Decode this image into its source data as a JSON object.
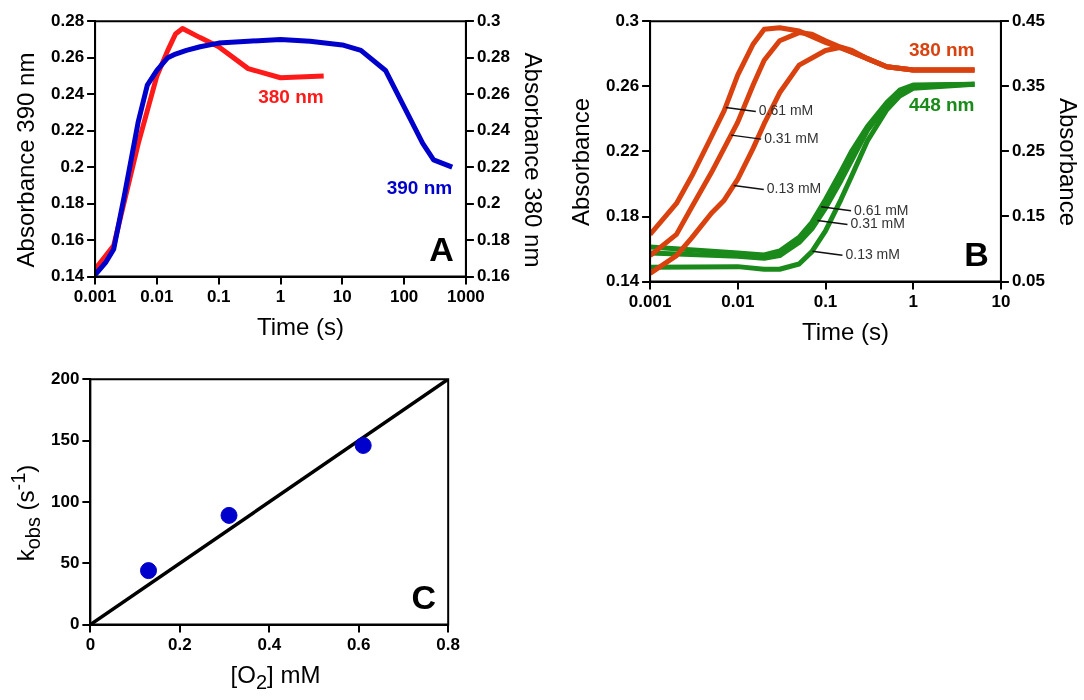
{
  "chart_data": [
    {
      "type": "line",
      "title": "A",
      "xlabel": "Time (s)",
      "ylabel": "Absorbance 390 nm",
      "y2label": "Absorbance 380 nm",
      "log": "x",
      "grid": false,
      "xlim": [
        0.001,
        1000
      ],
      "xticks": [
        0.001,
        0.01,
        0.1,
        1,
        10,
        100,
        1000
      ],
      "ylim": [
        0.14,
        0.28
      ],
      "yticks": [
        0.14,
        0.16,
        0.18,
        0.2,
        0.22,
        0.24,
        0.26,
        0.28
      ],
      "y2lim": [
        0.16,
        0.3
      ],
      "y2ticks": [
        0.16,
        0.18,
        0.2,
        0.22,
        0.24,
        0.26,
        0.28,
        0.3
      ],
      "series": [
        {
          "name": "390 nm",
          "color": "#0000cc",
          "x": [
            0.001,
            0.0015,
            0.002,
            0.003,
            0.005,
            0.007,
            0.01,
            0.015,
            0.02,
            0.03,
            0.05,
            0.1,
            0.3,
            1,
            3,
            10,
            20,
            50,
            100,
            200,
            300,
            600
          ],
          "values": [
            0.141,
            0.148,
            0.155,
            0.185,
            0.225,
            0.245,
            0.253,
            0.26,
            0.262,
            0.264,
            0.266,
            0.268,
            0.269,
            0.27,
            0.269,
            0.267,
            0.264,
            0.253,
            0.233,
            0.213,
            0.204,
            0.2
          ]
        },
        {
          "name": "380 nm",
          "color": "#ff1a1a",
          "axis": "y2",
          "x": [
            0.001,
            0.002,
            0.005,
            0.01,
            0.015,
            0.02,
            0.026,
            0.05,
            0.1,
            0.3,
            1,
            5
          ],
          "values": [
            0.164,
            0.177,
            0.233,
            0.27,
            0.284,
            0.293,
            0.296,
            0.291,
            0.286,
            0.274,
            0.269,
            0.27
          ]
        }
      ]
    },
    {
      "type": "line",
      "title": "B",
      "xlabel": "Time (s)",
      "ylabel": "Absorbance",
      "y2label": "Absorbance",
      "log": "x",
      "grid": false,
      "xlim": [
        0.001,
        10
      ],
      "xticks": [
        0.001,
        0.01,
        0.1,
        1,
        10
      ],
      "ylim": [
        0.14,
        0.3
      ],
      "yticks": [
        0.14,
        0.18,
        0.22,
        0.26,
        0.3
      ],
      "y2lim": [
        0.05,
        0.45
      ],
      "y2ticks": [
        0.05,
        0.15,
        0.25,
        0.35,
        0.45
      ],
      "series": [
        {
          "name": "380 nm",
          "color": "#d9410e",
          "x": [
            0.001,
            0.002,
            0.003,
            0.005,
            0.007,
            0.01,
            0.015,
            0.02,
            0.03,
            0.05,
            0.1,
            0.2,
            0.3,
            0.5,
            1,
            5
          ],
          "values": [
            0.169,
            0.188,
            0.205,
            0.229,
            0.245,
            0.267,
            0.286,
            0.295,
            0.296,
            0.294,
            0.287,
            0.281,
            0.277,
            0.272,
            0.27,
            0.27
          ]
        },
        {
          "color": "#d9410e",
          "x": [
            0.001,
            0.002,
            0.003,
            0.005,
            0.007,
            0.01,
            0.015,
            0.02,
            0.03,
            0.05,
            0.07,
            0.1,
            0.2,
            0.3,
            0.5,
            1,
            5
          ],
          "values": [
            0.156,
            0.169,
            0.186,
            0.207,
            0.222,
            0.238,
            0.261,
            0.276,
            0.288,
            0.293,
            0.292,
            0.288,
            0.281,
            0.277,
            0.272,
            0.27,
            0.27
          ]
        },
        {
          "color": "#d9410e",
          "x": [
            0.001,
            0.002,
            0.003,
            0.005,
            0.007,
            0.01,
            0.015,
            0.02,
            0.03,
            0.05,
            0.1,
            0.15,
            0.2,
            0.3,
            0.5,
            1,
            5
          ],
          "values": [
            0.145,
            0.156,
            0.167,
            0.182,
            0.19,
            0.203,
            0.222,
            0.237,
            0.256,
            0.273,
            0.282,
            0.284,
            0.282,
            0.277,
            0.272,
            0.27,
            0.27
          ]
        },
        {
          "name": "448 nm",
          "color": "#1a8a1a",
          "axis": "y2",
          "x": [
            0.001,
            0.01,
            0.02,
            0.03,
            0.05,
            0.07,
            0.1,
            0.15,
            0.2,
            0.3,
            0.5,
            0.7,
            1,
            5
          ],
          "values": [
            0.103,
            0.094,
            0.091,
            0.097,
            0.118,
            0.141,
            0.176,
            0.219,
            0.251,
            0.288,
            0.325,
            0.344,
            0.352,
            0.353
          ]
        },
        {
          "color": "#1a8a1a",
          "axis": "y2",
          "x": [
            0.001,
            0.01,
            0.02,
            0.03,
            0.05,
            0.07,
            0.1,
            0.15,
            0.2,
            0.3,
            0.5,
            0.7,
            1,
            5
          ],
          "values": [
            0.094,
            0.089,
            0.086,
            0.09,
            0.11,
            0.131,
            0.163,
            0.205,
            0.237,
            0.282,
            0.322,
            0.341,
            0.351,
            0.353
          ]
        },
        {
          "color": "#1a8a1a",
          "axis": "y2",
          "x": [
            0.001,
            0.01,
            0.02,
            0.03,
            0.05,
            0.07,
            0.1,
            0.15,
            0.2,
            0.3,
            0.5,
            0.7,
            1,
            5
          ],
          "values": [
            0.072,
            0.073,
            0.069,
            0.069,
            0.077,
            0.096,
            0.128,
            0.176,
            0.213,
            0.266,
            0.314,
            0.335,
            0.347,
            0.353
          ]
        }
      ],
      "annotations": [
        {
          "text": "0.61 mM",
          "x": 0.0073,
          "y": 0.247
        },
        {
          "text": "0.31 mM",
          "x": 0.0084,
          "y": 0.23
        },
        {
          "text": "0.13 mM",
          "x": 0.009,
          "y": 0.199
        },
        {
          "text": "0.61 mM",
          "x": 0.089,
          "y": 0.186
        },
        {
          "text": "0.31 mM",
          "x": 0.081,
          "y": 0.1775
        },
        {
          "text": "0.13 mM",
          "x": 0.071,
          "y": 0.1586
        }
      ]
    },
    {
      "type": "scatter",
      "title": "C",
      "xlabel": "[O$_{2}$] mM",
      "ylabel": "k$_{obs}$ (s$^{-1}$)",
      "grid": false,
      "xlim": [
        0,
        0.8
      ],
      "xticks": [
        0,
        0.2,
        0.4,
        0.6,
        0.8
      ],
      "ylim": [
        0,
        200
      ],
      "yticks": [
        0,
        50,
        100,
        150,
        200
      ],
      "series": [
        {
          "color": "#0000cc",
          "marker": "circle",
          "x": [
            0.13,
            0.31,
            0.61
          ],
          "values": [
            44,
            89,
            146
          ]
        },
        {
          "type": "line",
          "color": "#000000",
          "x": [
            0,
            0.8
          ],
          "values": [
            0,
            200
          ]
        }
      ]
    }
  ]
}
